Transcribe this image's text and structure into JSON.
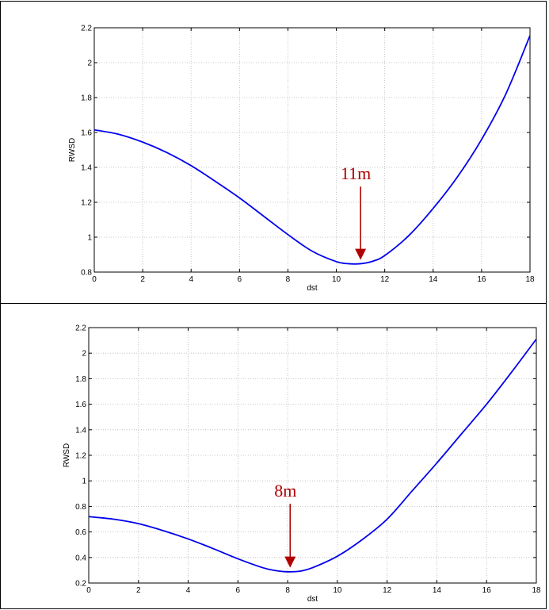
{
  "chart_data": [
    {
      "type": "line",
      "xlabel": "dst",
      "ylabel": "RWSD",
      "xlim": [
        0,
        18
      ],
      "ylim": [
        0.8,
        2.2
      ],
      "xticks": [
        0,
        2,
        4,
        6,
        8,
        10,
        12,
        14,
        16,
        18
      ],
      "yticks": [
        0.8,
        1,
        1.2,
        1.4,
        1.6,
        1.8,
        2,
        2.2
      ],
      "grid": true,
      "line_color": "#0000ee",
      "series": [
        {
          "x": [
            0,
            1,
            2,
            3,
            4,
            5,
            6,
            7,
            8,
            9,
            10,
            10.5,
            11,
            11.5,
            12,
            13,
            14,
            15,
            16,
            17,
            18
          ],
          "y": [
            1.615,
            1.59,
            1.545,
            1.485,
            1.41,
            1.32,
            1.225,
            1.12,
            1.015,
            0.92,
            0.86,
            0.848,
            0.848,
            0.862,
            0.895,
            1.01,
            1.165,
            1.345,
            1.56,
            1.82,
            2.155
          ]
        }
      ],
      "annotations": [
        {
          "text": "11m",
          "x": 11,
          "y_from": 1.29,
          "y_to": 0.87,
          "color": "#b00000"
        }
      ]
    },
    {
      "type": "line",
      "xlabel": "dst",
      "ylabel": "RWSD",
      "xlim": [
        0,
        18
      ],
      "ylim": [
        0.2,
        2.2
      ],
      "xticks": [
        0,
        2,
        4,
        6,
        8,
        10,
        12,
        14,
        16,
        18
      ],
      "yticks": [
        0.2,
        0.4,
        0.6,
        0.8,
        1,
        1.2,
        1.4,
        1.6,
        1.8,
        2,
        2.2
      ],
      "grid": true,
      "line_color": "#0000ee",
      "series": [
        {
          "x": [
            0,
            1,
            2,
            3,
            4,
            5,
            6,
            7,
            7.5,
            8,
            8.5,
            9,
            10,
            11,
            12,
            13,
            14,
            15,
            16,
            17,
            18
          ],
          "y": [
            0.72,
            0.7,
            0.665,
            0.61,
            0.545,
            0.47,
            0.39,
            0.32,
            0.298,
            0.288,
            0.293,
            0.32,
            0.41,
            0.54,
            0.7,
            0.92,
            1.14,
            1.37,
            1.6,
            1.85,
            2.11
          ]
        }
      ],
      "annotations": [
        {
          "text": "8m",
          "x": 8.1,
          "y_from": 0.82,
          "y_to": 0.32,
          "color": "#b00000"
        }
      ]
    }
  ]
}
